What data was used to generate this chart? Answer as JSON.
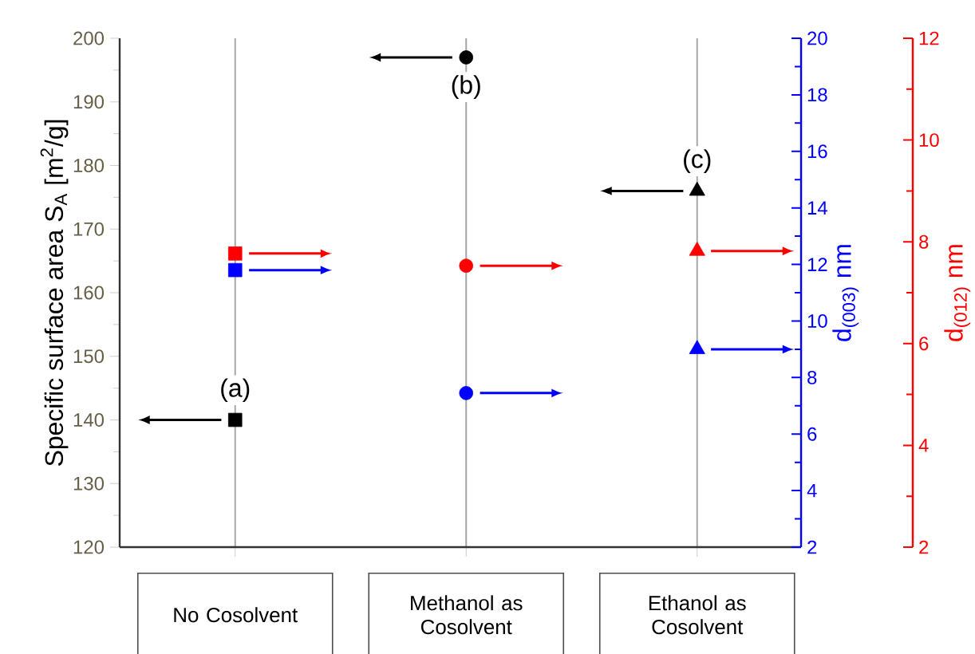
{
  "chart_data": {
    "type": "scatter",
    "ylabel": "Specific surface area  S$_{A}$ [m$^{2}$/g]",
    "y2label": "d$_{(003)}$ nm",
    "y3label": "d$_{(012)}$ nm",
    "categories": [
      "No Cosolvent",
      "Methanol as Cosolvent",
      "Ethanol as Cosolvent"
    ],
    "series": [
      {
        "color": "#000000",
        "values": [
          140,
          197,
          176
        ]
      },
      {
        "color": "#0000ff",
        "axis": "y2",
        "values": [
          11.8,
          7.45,
          9.0
        ]
      },
      {
        "color": "#ff0000",
        "axis": "y3",
        "values": [
          7.77,
          7.53,
          7.82
        ]
      }
    ],
    "ylim": [
      120,
      200
    ],
    "yticks": [
      120,
      130,
      140,
      150,
      160,
      170,
      180,
      190,
      200
    ],
    "y2lim": [
      2,
      20
    ],
    "y2ticks": [
      2,
      4,
      6,
      8,
      10,
      12,
      14,
      16,
      18,
      20
    ],
    "y3lim": [
      2,
      12
    ],
    "y3ticks": [
      2,
      4,
      6,
      8,
      10,
      12
    ],
    "marker": [
      "square",
      "circle",
      "triangle"
    ],
    "grid": "x",
    "annotations": [
      {
        "text": "(a)",
        "x": "No Cosolvent",
        "y": 140
      },
      {
        "text": "(b)",
        "x": "Methanol as Cosolvent",
        "y": 197
      },
      {
        "text": "(c)",
        "x": "Ethanol as Cosolvent",
        "y": 176
      }
    ]
  }
}
